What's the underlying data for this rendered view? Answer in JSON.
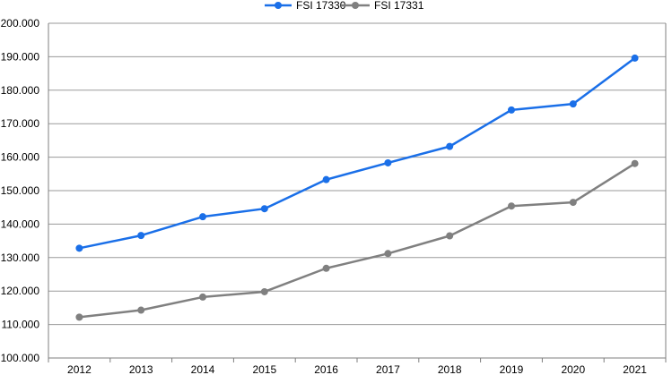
{
  "chart_data": {
    "type": "line",
    "title": "",
    "xlabel": "",
    "ylabel": "",
    "categories": [
      "2012",
      "2013",
      "2014",
      "2015",
      "2016",
      "2017",
      "2018",
      "2019",
      "2020",
      "2021"
    ],
    "ylim": [
      100000,
      200000
    ],
    "y_ticks": [
      100000,
      110000,
      120000,
      130000,
      140000,
      150000,
      160000,
      170000,
      180000,
      190000,
      200000
    ],
    "y_tick_labels": [
      "100.000",
      "110.000",
      "120.000",
      "130.000",
      "140.000",
      "150.000",
      "160.000",
      "170.000",
      "180.000",
      "190.000",
      "200.000"
    ],
    "grid": true,
    "legend_position": "top-center",
    "series": [
      {
        "name": "FSI 17330",
        "color": "#1a6fe8",
        "values": [
          132800,
          136600,
          142200,
          144600,
          153300,
          158300,
          163200,
          174100,
          175900,
          189600
        ]
      },
      {
        "name": "FSI 17331",
        "color": "#808080",
        "values": [
          112200,
          114300,
          118200,
          119800,
          126800,
          131200,
          136500,
          145400,
          146500,
          158100
        ]
      }
    ]
  }
}
